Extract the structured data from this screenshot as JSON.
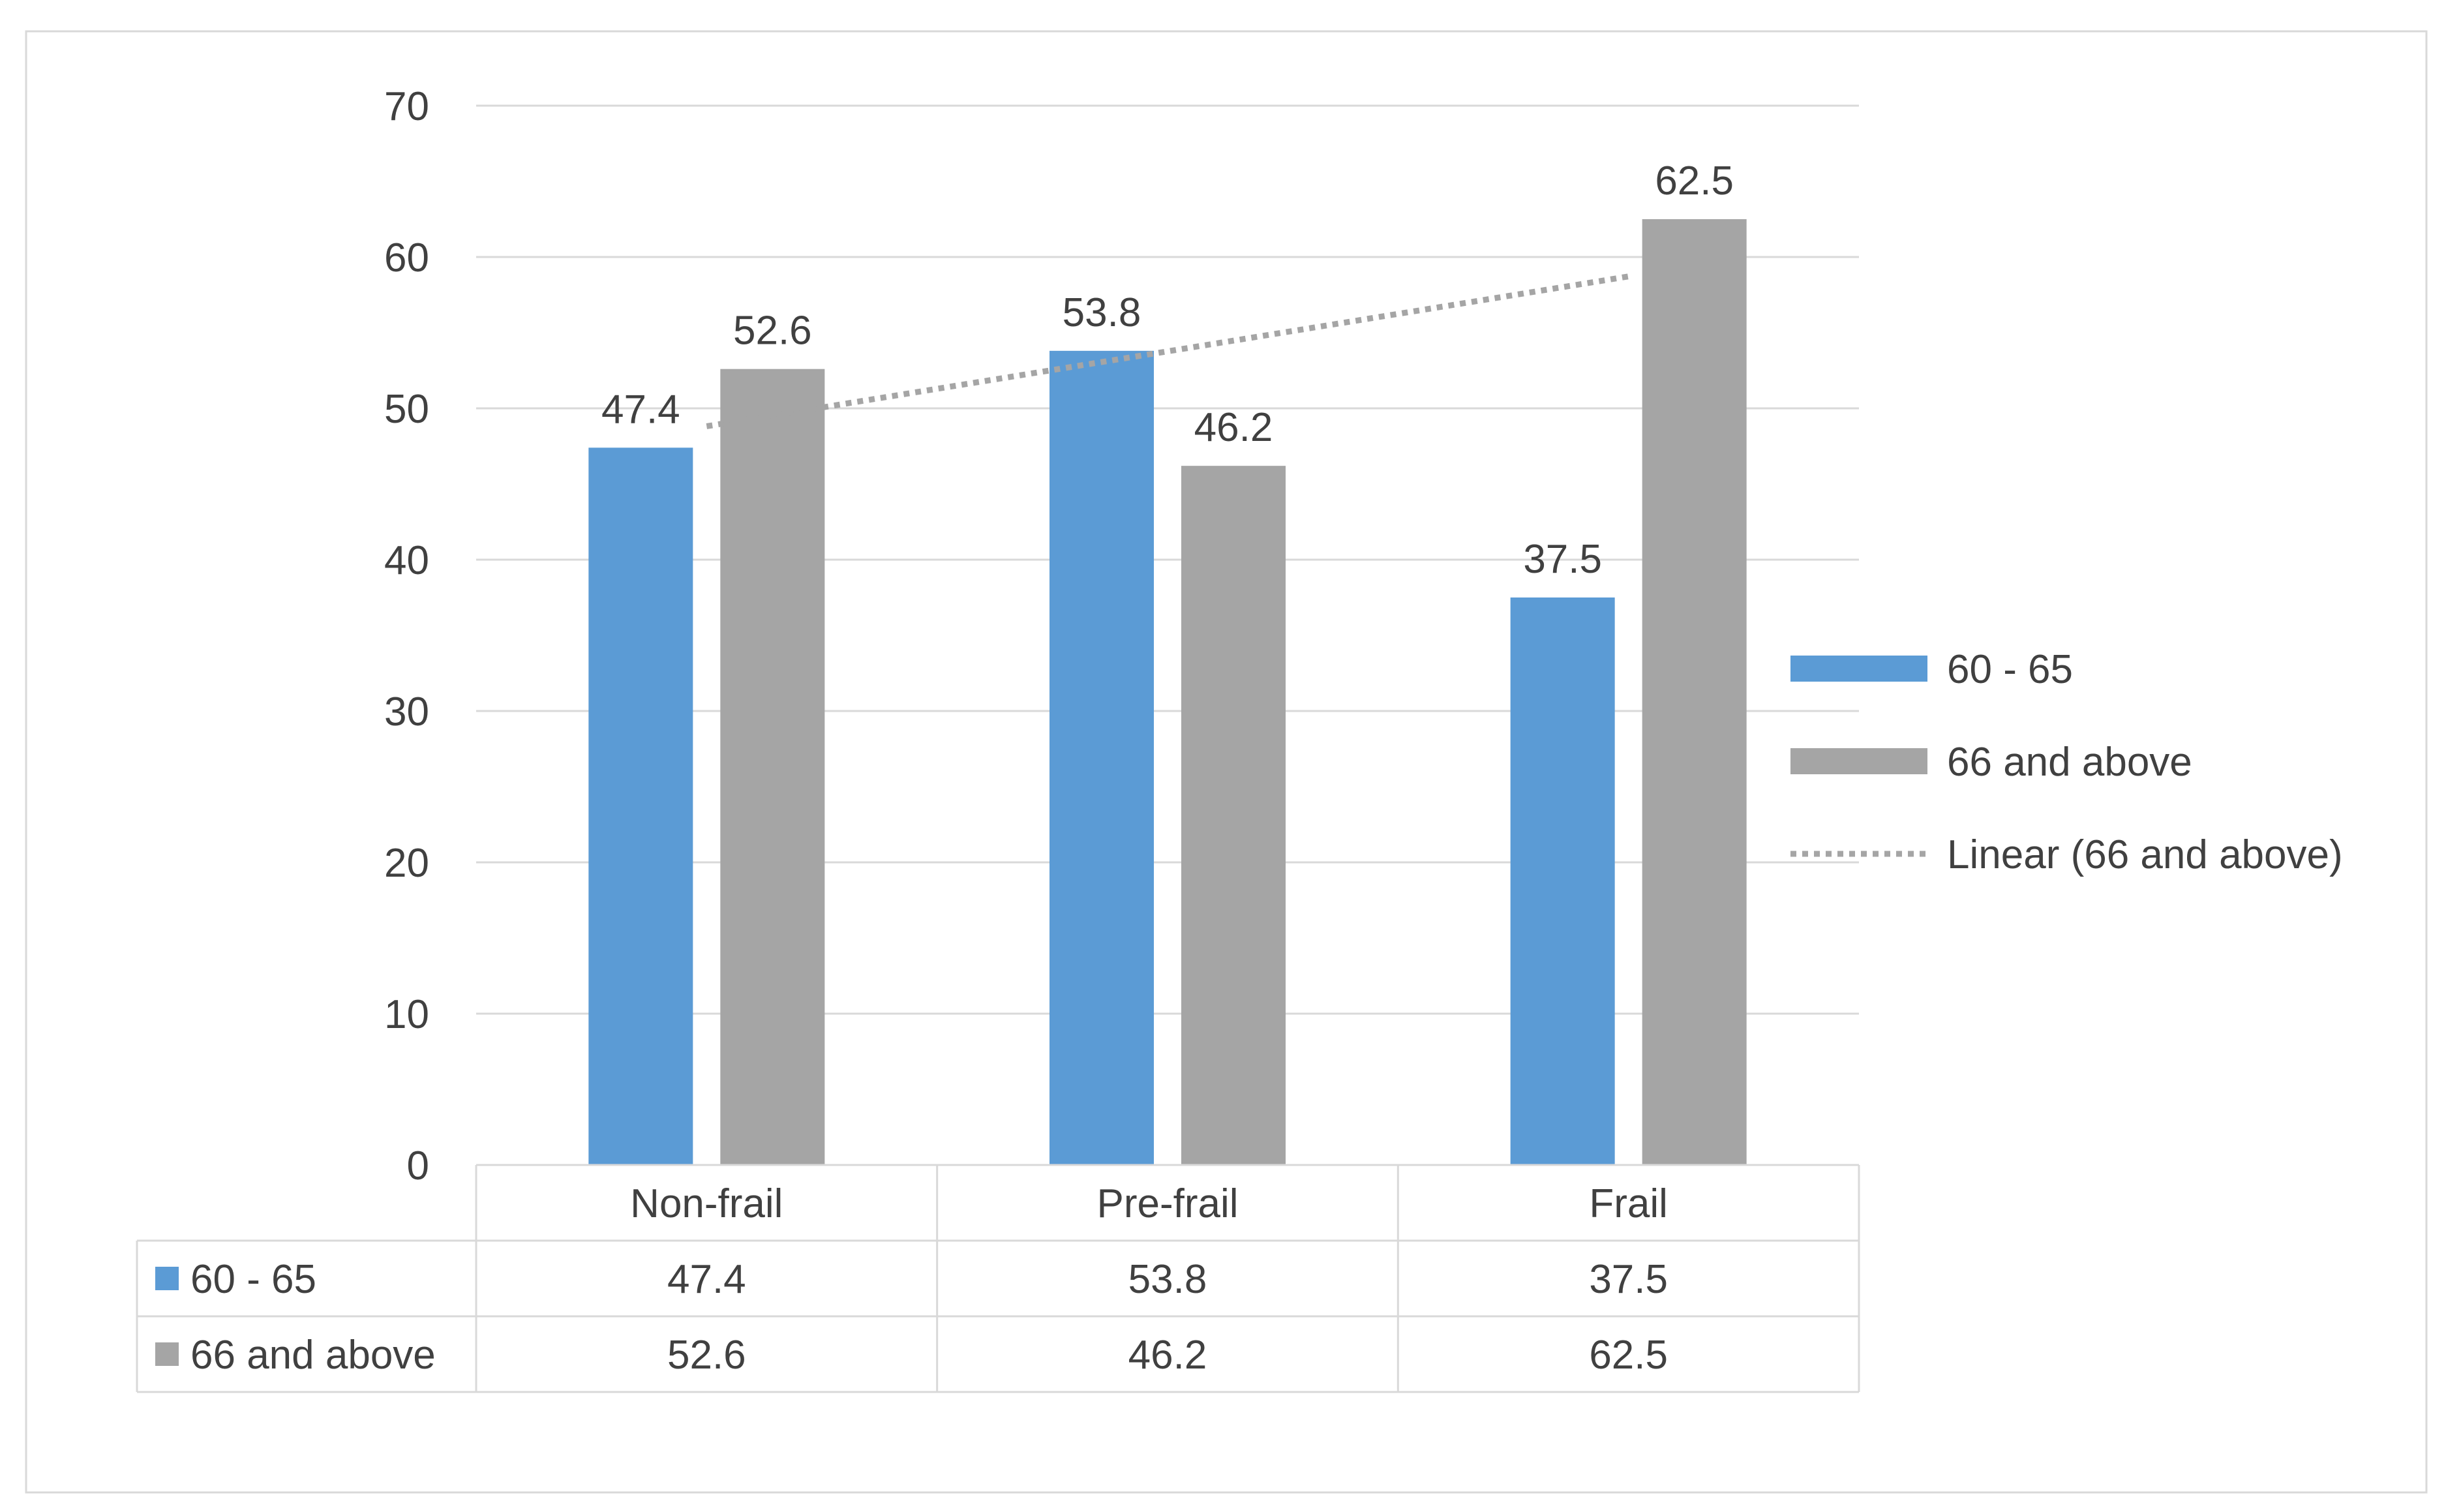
{
  "chart_data": {
    "type": "bar",
    "categories": [
      "Non-frail",
      "Pre-frail",
      "Frail"
    ],
    "series": [
      {
        "name": "60 - 65",
        "values": [
          47.4,
          53.8,
          37.5
        ],
        "color": "#5b9bd5"
      },
      {
        "name": "66 and above",
        "values": [
          52.6,
          46.2,
          62.5
        ],
        "color": "#a5a5a5"
      }
    ],
    "trendline": {
      "label": "Linear (66 and above)",
      "series": "66 and above",
      "style": "dotted",
      "color": "#a5a5a5"
    },
    "yticks": [
      "0",
      "10",
      "20",
      "30",
      "40",
      "50",
      "60",
      "70"
    ],
    "ylim": [
      0,
      70
    ],
    "grid": true,
    "legend": "right",
    "data_table": true,
    "data_labels": true
  }
}
